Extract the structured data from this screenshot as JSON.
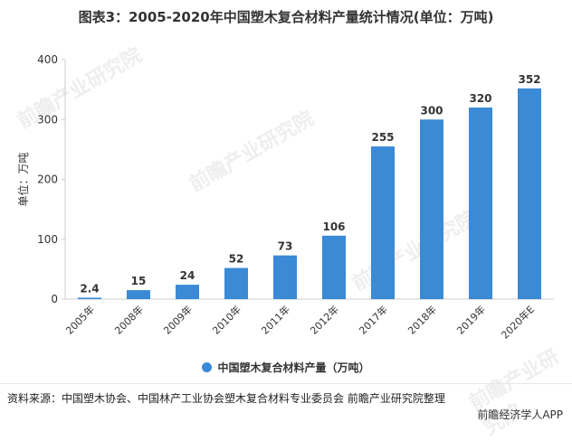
{
  "title": "图表3：2005-2020年中国塑木复合材料产量统计情况(单位：万吨)",
  "source": "资料来源：中国塑木协会、中国林产工业协会塑木复合材料专业委员会 前瞻产业研究院整理",
  "brand": "前瞻经济学人APP",
  "watermark": "前瞻产业研究院",
  "colors": {
    "bar": "#3a8ad6",
    "axis": "#cccccc",
    "grid": "#e5e5e5"
  },
  "chart_data": {
    "type": "bar",
    "categories": [
      "2005年",
      "2008年",
      "2009年",
      "2010年",
      "2011年",
      "2012年",
      "2017年",
      "2018年",
      "2019年",
      "2020年E"
    ],
    "series": [
      {
        "name": "中国塑木复合材料产量（万吨）",
        "values": [
          2.4,
          15,
          24,
          52,
          73,
          106,
          255,
          300,
          320,
          352
        ],
        "labels": [
          "2.4",
          "15",
          "24",
          "52",
          "73",
          "106",
          "255",
          "300",
          "320",
          "352"
        ]
      }
    ],
    "ylabel": "单位：万吨",
    "ylim": [
      0,
      400
    ],
    "yticks": [
      0,
      100,
      200,
      300,
      400
    ],
    "grid": false,
    "legend": "bottom"
  }
}
